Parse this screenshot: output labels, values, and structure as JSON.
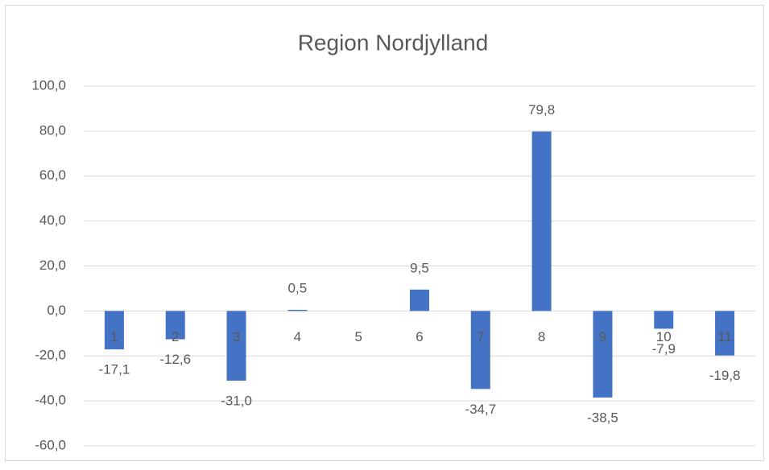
{
  "chart_data": {
    "type": "bar",
    "title": "Region Nordjylland",
    "categories": [
      "1",
      "2",
      "3",
      "4",
      "5",
      "6",
      "7",
      "8",
      "9",
      "10",
      "11"
    ],
    "values": [
      -17.1,
      -12.6,
      -31.0,
      0.5,
      null,
      9.5,
      -34.7,
      79.8,
      -38.5,
      -7.9,
      -19.8
    ],
    "value_labels": [
      "-17,1",
      "-12,6",
      "-31,0",
      "0,5",
      null,
      "9,5",
      "-34,7",
      "79,8",
      "-38,5",
      "-7,9",
      "-19,8"
    ],
    "color": "#4472c4",
    "ylim": [
      -60,
      100
    ],
    "yticks": [
      {
        "value": -60,
        "label": "-60,0"
      },
      {
        "value": -40,
        "label": "-40,0"
      },
      {
        "value": -20,
        "label": "-20,0"
      },
      {
        "value": 0,
        "label": "0,0"
      },
      {
        "value": 20,
        "label": "20,0"
      },
      {
        "value": 40,
        "label": "40,0"
      },
      {
        "value": 60,
        "label": "60,0"
      },
      {
        "value": 80,
        "label": "80,0"
      },
      {
        "value": 100,
        "label": "100,0"
      }
    ],
    "grid": true
  }
}
